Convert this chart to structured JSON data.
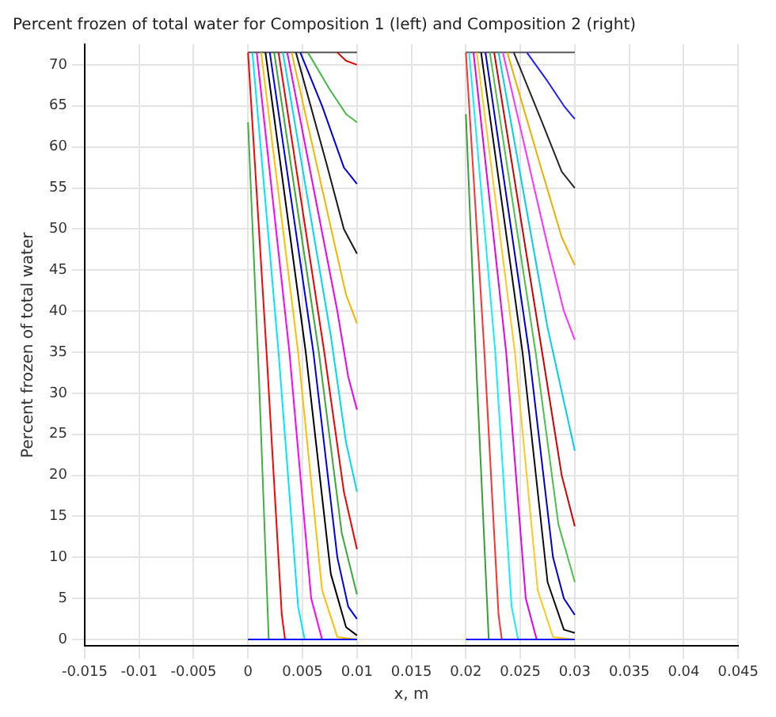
{
  "chart_data": {
    "type": "line",
    "title": "Percent frozen of total water for Composition 1 (left) and Composition 2 (right)",
    "xlabel": "x, m",
    "ylabel": "Percent frozen of total water",
    "xlim": [
      -0.015,
      0.045
    ],
    "xticks": [
      -0.015,
      -0.01,
      -0.005,
      0,
      0.005,
      0.01,
      0.015,
      0.02,
      0.025,
      0.03,
      0.035,
      0.04,
      0.045
    ],
    "ylim": [
      -0.8,
      72.5
    ],
    "yticks": [
      0,
      5,
      10,
      15,
      20,
      25,
      30,
      35,
      40,
      45,
      50,
      55,
      60,
      65,
      70
    ],
    "grid": true,
    "legend": false,
    "marker": "none",
    "line_style": "solid",
    "series": [
      {
        "color": "#0000ff",
        "x": [
          0,
          0.01
        ],
        "values": [
          0,
          0
        ]
      },
      {
        "color": "#40b040",
        "x": [
          0,
          0.001,
          0.0019,
          0.01
        ],
        "values": [
          63,
          32,
          0,
          0
        ]
      },
      {
        "color": "#ff0000",
        "x": [
          0,
          0.0017,
          0.0031,
          0.0034,
          0.01
        ],
        "values": [
          71.5,
          35,
          3,
          0,
          0
        ]
      },
      {
        "color": "#00e5ff",
        "x": [
          0.0004,
          0.0028,
          0.0046,
          0.0052,
          0.01
        ],
        "values": [
          71.5,
          35,
          4,
          0,
          0
        ]
      },
      {
        "color": "#ff00ff",
        "x": [
          0.0008,
          0.0038,
          0.0058,
          0.0068,
          0.01
        ],
        "values": [
          71.5,
          35,
          5,
          0,
          0
        ]
      },
      {
        "color": "#ffbf00",
        "x": [
          0.0012,
          0.0046,
          0.0068,
          0.0082,
          0.01
        ],
        "values": [
          71.5,
          35,
          6,
          0.3,
          0
        ]
      },
      {
        "color": "#000000",
        "x": [
          0.0016,
          0.0053,
          0.0076,
          0.009,
          0.01
        ],
        "values": [
          71.5,
          35,
          8,
          1.5,
          0.5
        ]
      },
      {
        "color": "#0000f0",
        "x": [
          0.002,
          0.006,
          0.0082,
          0.0092,
          0.01
        ],
        "values": [
          71.5,
          35,
          10,
          4,
          2.5
        ]
      },
      {
        "color": "#3aa83a",
        "x": [
          0.0024,
          0.0065,
          0.0086,
          0.01
        ],
        "values": [
          71.5,
          35,
          13,
          5.5
        ]
      },
      {
        "color": "#f20000",
        "x": [
          0.0028,
          0.007,
          0.0088,
          0.01
        ],
        "values": [
          71.5,
          35,
          18,
          11
        ]
      },
      {
        "color": "#00d8f0",
        "x": [
          0.0032,
          0.0076,
          0.009,
          0.01
        ],
        "values": [
          71.5,
          37,
          24,
          18
        ]
      },
      {
        "color": "#f000f0",
        "x": [
          0.0036,
          0.0082,
          0.0092,
          0.01
        ],
        "values": [
          71.5,
          40,
          32,
          28
        ]
      },
      {
        "color": "#f5b400",
        "x": [
          0.004,
          0.0078,
          0.009,
          0.01
        ],
        "values": [
          71.5,
          49,
          42,
          38.5
        ]
      },
      {
        "color": "#1a1a1a",
        "x": [
          0.0044,
          0.0072,
          0.0088,
          0.01
        ],
        "values": [
          71.5,
          58,
          50,
          47
        ]
      },
      {
        "color": "#0000e0",
        "x": [
          0.0048,
          0.0068,
          0.0088,
          0.01
        ],
        "values": [
          71.5,
          65,
          57.5,
          55.5
        ]
      },
      {
        "color": "#48b848",
        "x": [
          0.0055,
          0.0075,
          0.009,
          0.01
        ],
        "values": [
          71.5,
          67,
          64,
          63
        ]
      },
      {
        "color": "#e60000",
        "x": [
          0.0082,
          0.009,
          0.01
        ],
        "values": [
          71.5,
          70.5,
          70
        ]
      },
      {
        "color": "#555555",
        "x": [
          0,
          0.01
        ],
        "values": [
          71.5,
          71.5
        ]
      },
      {
        "color": "#1a1aff",
        "x": [
          0.02,
          0.03
        ],
        "values": [
          0,
          0
        ]
      },
      {
        "color": "#36a036",
        "x": [
          0.02,
          0.021,
          0.0221,
          0.03
        ],
        "values": [
          64,
          32,
          0,
          0
        ]
      },
      {
        "color": "#ff3030",
        "x": [
          0.02,
          0.0217,
          0.023,
          0.0233,
          0.03
        ],
        "values": [
          71.5,
          35,
          3,
          0,
          0
        ]
      },
      {
        "color": "#10eeff",
        "x": [
          0.0203,
          0.0227,
          0.0242,
          0.0248,
          0.03
        ],
        "values": [
          71.5,
          35,
          4,
          0,
          0
        ]
      },
      {
        "color": "#e600e6",
        "x": [
          0.0207,
          0.0237,
          0.0255,
          0.0265,
          0.03
        ],
        "values": [
          71.5,
          35,
          5,
          0,
          0
        ]
      },
      {
        "color": "#ffc820",
        "x": [
          0.021,
          0.0245,
          0.0266,
          0.028,
          0.03
        ],
        "values": [
          71.5,
          35,
          6,
          0.3,
          0
        ]
      },
      {
        "color": "#0d0d0d",
        "x": [
          0.0214,
          0.0252,
          0.0275,
          0.029,
          0.03
        ],
        "values": [
          71.5,
          35,
          7,
          1.2,
          0.8
        ]
      },
      {
        "color": "#0000d0",
        "x": [
          0.0218,
          0.0258,
          0.028,
          0.029,
          0.03
        ],
        "values": [
          71.5,
          35,
          10,
          5,
          3
        ]
      },
      {
        "color": "#4cc04c",
        "x": [
          0.0222,
          0.0264,
          0.0285,
          0.03
        ],
        "values": [
          71.5,
          35,
          14,
          7
        ]
      },
      {
        "color": "#d00000",
        "x": [
          0.0226,
          0.027,
          0.0288,
          0.03
        ],
        "values": [
          71.5,
          35,
          20,
          13.8
        ]
      },
      {
        "color": "#00cfe6",
        "x": [
          0.023,
          0.0275,
          0.029,
          0.03
        ],
        "values": [
          71.5,
          38,
          29,
          23
        ]
      },
      {
        "color": "#ff30ff",
        "x": [
          0.0234,
          0.0275,
          0.029,
          0.03
        ],
        "values": [
          71.5,
          48,
          40,
          36.5
        ]
      },
      {
        "color": "#eab000",
        "x": [
          0.0238,
          0.027,
          0.0288,
          0.03
        ],
        "values": [
          71.5,
          57,
          49,
          45.6
        ]
      },
      {
        "color": "#262626",
        "x": [
          0.0244,
          0.027,
          0.0288,
          0.03
        ],
        "values": [
          71.5,
          63,
          57,
          55
        ]
      },
      {
        "color": "#2020ff",
        "x": [
          0.0256,
          0.0275,
          0.029,
          0.03
        ],
        "values": [
          71.5,
          68,
          65,
          63.4
        ]
      },
      {
        "color": "#5a5a5a",
        "x": [
          0.02,
          0.03
        ],
        "values": [
          71.5,
          71.5
        ]
      }
    ]
  }
}
